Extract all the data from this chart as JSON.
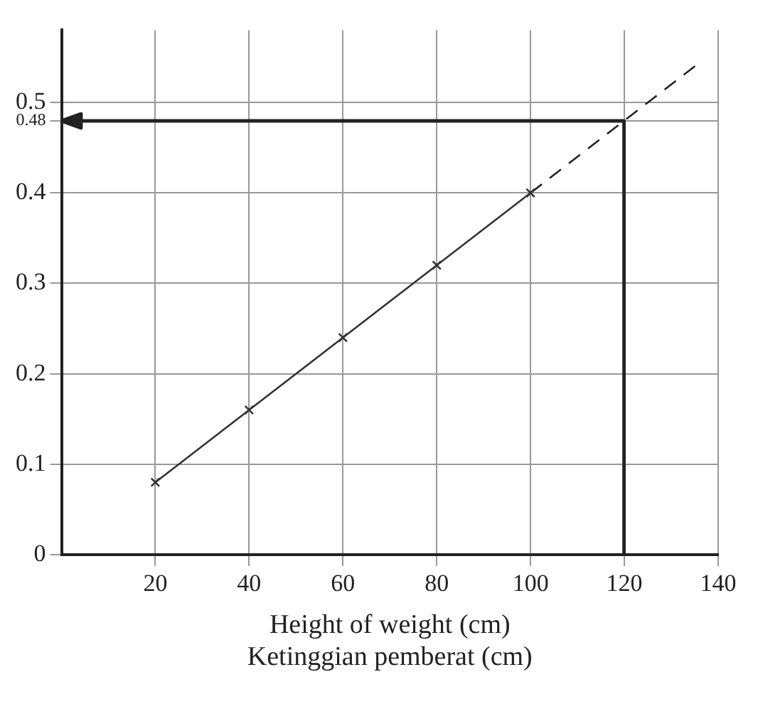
{
  "chart_data": {
    "type": "line",
    "xlabel": "Height of weight (cm)\nKetinggian pemberat (cm)",
    "x": [
      20,
      40,
      60,
      80,
      100
    ],
    "series": [
      {
        "color": "#333333",
        "values": [
          0.08,
          0.16,
          0.24,
          0.32,
          0.4
        ],
        "marker": "cross",
        "line_style": "solid"
      },
      {
        "color": "#222222",
        "x": [
          100,
          120,
          136
        ],
        "values": [
          0.4,
          0.48,
          0.544
        ],
        "marker": "none",
        "line_style": "dashed"
      }
    ],
    "xlim": [
      0,
      140
    ],
    "xticks": [
      20,
      40,
      60,
      80,
      100,
      120,
      140
    ],
    "ylim": [
      0,
      0.58
    ],
    "yticks": [
      0,
      0.1,
      0.2,
      0.3,
      0.4,
      0.48,
      0.5
    ],
    "grid": true,
    "legend": false
  }
}
